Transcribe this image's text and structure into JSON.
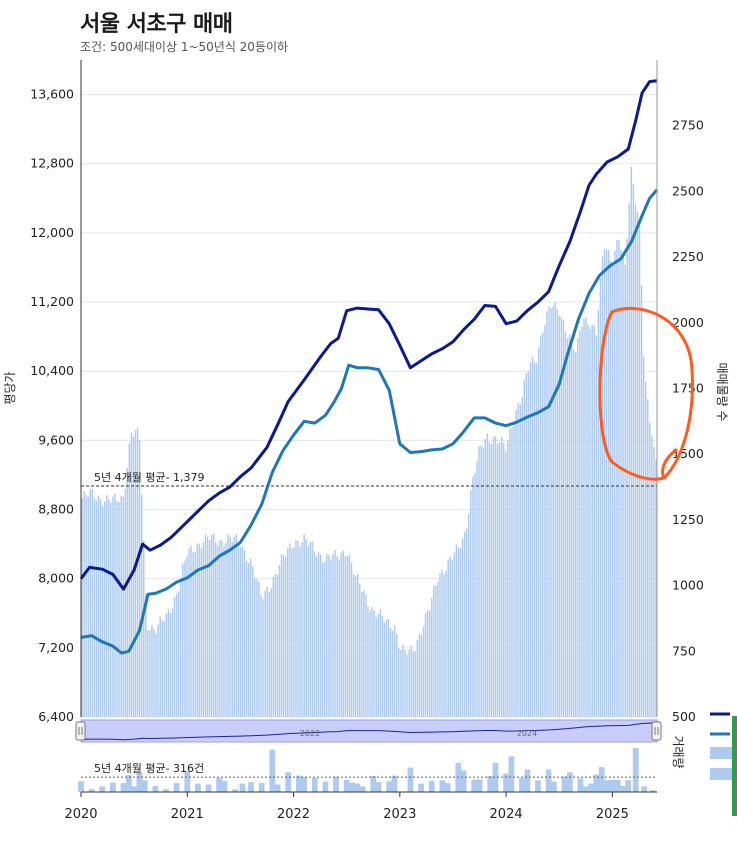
{
  "title": "서울 서초구 매매",
  "subtitle": "조건: 500세대이상 1~50년식 20등이하",
  "chart_data": {
    "type": "line+bar",
    "y_left_label": "평당가",
    "y_right_label": "매매물량 수",
    "volume_label": "거래량",
    "y_left_ticks": [
      "6,400",
      "7,200",
      "8,000",
      "8,800",
      "9,600",
      "10,400",
      "11,200",
      "12,000",
      "12,800",
      "13,600"
    ],
    "y_left_lim": [
      6400,
      14000
    ],
    "y_right_ticks": [
      "500",
      "750",
      "1000",
      "1250",
      "1500",
      "1750",
      "2000",
      "2250",
      "2500",
      "2750"
    ],
    "y_right_lim": [
      500,
      3000
    ],
    "x_ticks": [
      "2020",
      "2021",
      "2022",
      "2023",
      "2024",
      "2025"
    ],
    "minimap_labels": [
      "2022",
      "2024"
    ],
    "avg_listings_note": "5년 4개월 평균- 1,379",
    "avg_listings_value": 1379,
    "avg_volume_note": "5년 4개월 평균- 316건",
    "avg_volume_value": 316,
    "series": [
      {
        "name": "",
        "color": "#0d1a8a",
        "axis": "left",
        "points": [
          [
            2020.0,
            8000
          ],
          [
            2020.08,
            8130
          ],
          [
            2020.2,
            8110
          ],
          [
            2020.3,
            8050
          ],
          [
            2020.4,
            7880
          ],
          [
            2020.5,
            8100
          ],
          [
            2020.58,
            8400
          ],
          [
            2020.65,
            8330
          ],
          [
            2020.75,
            8390
          ],
          [
            2020.85,
            8480
          ],
          [
            2020.95,
            8600
          ],
          [
            2021.05,
            8720
          ],
          [
            2021.2,
            8900
          ],
          [
            2021.3,
            8990
          ],
          [
            2021.4,
            9060
          ],
          [
            2021.5,
            9180
          ],
          [
            2021.6,
            9280
          ],
          [
            2021.75,
            9520
          ],
          [
            2021.85,
            9780
          ],
          [
            2021.95,
            10050
          ],
          [
            2022.1,
            10300
          ],
          [
            2022.25,
            10560
          ],
          [
            2022.35,
            10720
          ],
          [
            2022.42,
            10780
          ],
          [
            2022.5,
            11100
          ],
          [
            2022.6,
            11130
          ],
          [
            2022.7,
            11120
          ],
          [
            2022.8,
            11110
          ],
          [
            2022.9,
            10950
          ],
          [
            2023.0,
            10700
          ],
          [
            2023.1,
            10440
          ],
          [
            2023.2,
            10520
          ],
          [
            2023.3,
            10600
          ],
          [
            2023.4,
            10660
          ],
          [
            2023.5,
            10740
          ],
          [
            2023.6,
            10880
          ],
          [
            2023.7,
            11000
          ],
          [
            2023.8,
            11160
          ],
          [
            2023.9,
            11150
          ],
          [
            2024.0,
            10950
          ],
          [
            2024.1,
            10980
          ],
          [
            2024.2,
            11100
          ],
          [
            2024.3,
            11200
          ],
          [
            2024.4,
            11320
          ],
          [
            2024.5,
            11620
          ],
          [
            2024.6,
            11900
          ],
          [
            2024.7,
            12250
          ],
          [
            2024.78,
            12550
          ],
          [
            2024.85,
            12680
          ],
          [
            2024.95,
            12820
          ],
          [
            2025.05,
            12880
          ],
          [
            2025.15,
            12970
          ],
          [
            2025.22,
            13300
          ],
          [
            2025.28,
            13620
          ],
          [
            2025.35,
            13750
          ],
          [
            2025.42,
            13760
          ]
        ]
      },
      {
        "name": "",
        "color": "#1f77b4",
        "axis": "left",
        "points": [
          [
            2020.0,
            7320
          ],
          [
            2020.1,
            7340
          ],
          [
            2020.2,
            7270
          ],
          [
            2020.3,
            7220
          ],
          [
            2020.38,
            7140
          ],
          [
            2020.45,
            7160
          ],
          [
            2020.55,
            7400
          ],
          [
            2020.63,
            7820
          ],
          [
            2020.7,
            7830
          ],
          [
            2020.8,
            7880
          ],
          [
            2020.9,
            7960
          ],
          [
            2021.0,
            8010
          ],
          [
            2021.1,
            8100
          ],
          [
            2021.2,
            8150
          ],
          [
            2021.3,
            8260
          ],
          [
            2021.4,
            8330
          ],
          [
            2021.5,
            8420
          ],
          [
            2021.6,
            8620
          ],
          [
            2021.7,
            8860
          ],
          [
            2021.8,
            9230
          ],
          [
            2021.9,
            9480
          ],
          [
            2022.0,
            9660
          ],
          [
            2022.1,
            9820
          ],
          [
            2022.2,
            9800
          ],
          [
            2022.3,
            9890
          ],
          [
            2022.38,
            10040
          ],
          [
            2022.45,
            10200
          ],
          [
            2022.52,
            10470
          ],
          [
            2022.6,
            10440
          ],
          [
            2022.7,
            10440
          ],
          [
            2022.8,
            10420
          ],
          [
            2022.9,
            10180
          ],
          [
            2023.0,
            9560
          ],
          [
            2023.1,
            9460
          ],
          [
            2023.2,
            9470
          ],
          [
            2023.3,
            9490
          ],
          [
            2023.4,
            9500
          ],
          [
            2023.5,
            9560
          ],
          [
            2023.6,
            9700
          ],
          [
            2023.7,
            9860
          ],
          [
            2023.8,
            9860
          ],
          [
            2023.9,
            9800
          ],
          [
            2024.0,
            9770
          ],
          [
            2024.1,
            9810
          ],
          [
            2024.2,
            9870
          ],
          [
            2024.3,
            9920
          ],
          [
            2024.4,
            9990
          ],
          [
            2024.5,
            10250
          ],
          [
            2024.58,
            10600
          ],
          [
            2024.68,
            11000
          ],
          [
            2024.78,
            11300
          ],
          [
            2024.88,
            11510
          ],
          [
            2024.98,
            11620
          ],
          [
            2025.08,
            11700
          ],
          [
            2025.18,
            11900
          ],
          [
            2025.28,
            12200
          ],
          [
            2025.35,
            12400
          ],
          [
            2025.42,
            12500
          ]
        ]
      }
    ],
    "listings_bars": {
      "name": "",
      "axis": "right",
      "points": [
        [
          2020.0,
          1330
        ],
        [
          2020.1,
          1350
        ],
        [
          2020.2,
          1330
        ],
        [
          2020.3,
          1320
        ],
        [
          2020.4,
          1340
        ],
        [
          2020.47,
          1580
        ],
        [
          2020.55,
          1570
        ],
        [
          2020.62,
          860
        ],
        [
          2020.7,
          830
        ],
        [
          2020.8,
          880
        ],
        [
          2020.9,
          970
        ],
        [
          2021.0,
          1120
        ],
        [
          2021.1,
          1160
        ],
        [
          2021.2,
          1180
        ],
        [
          2021.3,
          1170
        ],
        [
          2021.4,
          1180
        ],
        [
          2021.5,
          1160
        ],
        [
          2021.6,
          1090
        ],
        [
          2021.7,
          950
        ],
        [
          2021.8,
          1020
        ],
        [
          2021.9,
          1100
        ],
        [
          2022.0,
          1170
        ],
        [
          2022.1,
          1170
        ],
        [
          2022.2,
          1140
        ],
        [
          2022.3,
          1100
        ],
        [
          2022.4,
          1110
        ],
        [
          2022.5,
          1140
        ],
        [
          2022.58,
          1030
        ],
        [
          2022.66,
          980
        ],
        [
          2022.75,
          900
        ],
        [
          2022.85,
          870
        ],
        [
          2022.95,
          850
        ],
        [
          2023.0,
          760
        ],
        [
          2023.05,
          740
        ],
        [
          2023.1,
          750
        ],
        [
          2023.15,
          780
        ],
        [
          2023.2,
          830
        ],
        [
          2023.28,
          910
        ],
        [
          2023.36,
          1040
        ],
        [
          2023.45,
          1080
        ],
        [
          2023.55,
          1140
        ],
        [
          2023.62,
          1210
        ],
        [
          2023.68,
          1390
        ],
        [
          2023.75,
          1510
        ],
        [
          2023.82,
          1570
        ],
        [
          2023.9,
          1560
        ],
        [
          2024.0,
          1520
        ],
        [
          2024.08,
          1660
        ],
        [
          2024.15,
          1720
        ],
        [
          2024.22,
          1840
        ],
        [
          2024.28,
          1860
        ],
        [
          2024.35,
          1990
        ],
        [
          2024.42,
          2060
        ],
        [
          2024.5,
          2050
        ],
        [
          2024.58,
          1960
        ],
        [
          2024.66,
          1880
        ],
        [
          2024.72,
          2020
        ],
        [
          2024.78,
          2010
        ],
        [
          2024.85,
          1960
        ],
        [
          2024.92,
          2300
        ],
        [
          2025.0,
          2240
        ],
        [
          2025.06,
          2330
        ],
        [
          2025.12,
          2200
        ],
        [
          2025.18,
          2590
        ],
        [
          2025.22,
          2470
        ],
        [
          2025.26,
          2370
        ],
        [
          2025.3,
          1800
        ],
        [
          2025.35,
          1630
        ],
        [
          2025.4,
          1480
        ]
      ]
    },
    "volume_bars": {
      "axis": "volume",
      "ylim": [
        0,
        1000
      ],
      "points": [
        [
          2020.0,
          230
        ],
        [
          2020.1,
          60
        ],
        [
          2020.2,
          120
        ],
        [
          2020.3,
          200
        ],
        [
          2020.4,
          190
        ],
        [
          2020.45,
          360
        ],
        [
          2020.5,
          120
        ],
        [
          2020.55,
          420
        ],
        [
          2020.6,
          250
        ],
        [
          2020.7,
          130
        ],
        [
          2020.8,
          60
        ],
        [
          2020.9,
          190
        ],
        [
          2021.0,
          440
        ],
        [
          2021.1,
          180
        ],
        [
          2021.2,
          160
        ],
        [
          2021.3,
          300
        ],
        [
          2021.35,
          240
        ],
        [
          2021.45,
          60
        ],
        [
          2021.52,
          180
        ],
        [
          2021.6,
          210
        ],
        [
          2021.7,
          190
        ],
        [
          2021.8,
          900
        ],
        [
          2021.85,
          160
        ],
        [
          2021.95,
          420
        ],
        [
          2022.05,
          350
        ],
        [
          2022.1,
          320
        ],
        [
          2022.2,
          300
        ],
        [
          2022.3,
          220
        ],
        [
          2022.4,
          330
        ],
        [
          2022.5,
          260
        ],
        [
          2022.55,
          200
        ],
        [
          2022.6,
          180
        ],
        [
          2022.65,
          120
        ],
        [
          2022.75,
          340
        ],
        [
          2022.8,
          210
        ],
        [
          2022.9,
          230
        ],
        [
          2022.95,
          350
        ],
        [
          2023.1,
          520
        ],
        [
          2023.2,
          180
        ],
        [
          2023.3,
          240
        ],
        [
          2023.4,
          250
        ],
        [
          2023.45,
          190
        ],
        [
          2023.55,
          620
        ],
        [
          2023.6,
          460
        ],
        [
          2023.7,
          260
        ],
        [
          2023.75,
          270
        ],
        [
          2023.85,
          340
        ],
        [
          2023.9,
          620
        ],
        [
          2024.0,
          390
        ],
        [
          2024.05,
          760
        ],
        [
          2024.15,
          300
        ],
        [
          2024.2,
          480
        ],
        [
          2024.3,
          250
        ],
        [
          2024.4,
          480
        ],
        [
          2024.45,
          220
        ],
        [
          2024.55,
          330
        ],
        [
          2024.6,
          420
        ],
        [
          2024.7,
          290
        ],
        [
          2024.75,
          120
        ],
        [
          2024.8,
          180
        ],
        [
          2024.85,
          370
        ],
        [
          2024.9,
          530
        ],
        [
          2024.95,
          250
        ],
        [
          2025.0,
          260
        ],
        [
          2025.05,
          260
        ],
        [
          2025.1,
          130
        ],
        [
          2025.15,
          250
        ],
        [
          2025.22,
          940
        ],
        [
          2025.3,
          120
        ],
        [
          2025.38,
          40
        ]
      ]
    }
  }
}
